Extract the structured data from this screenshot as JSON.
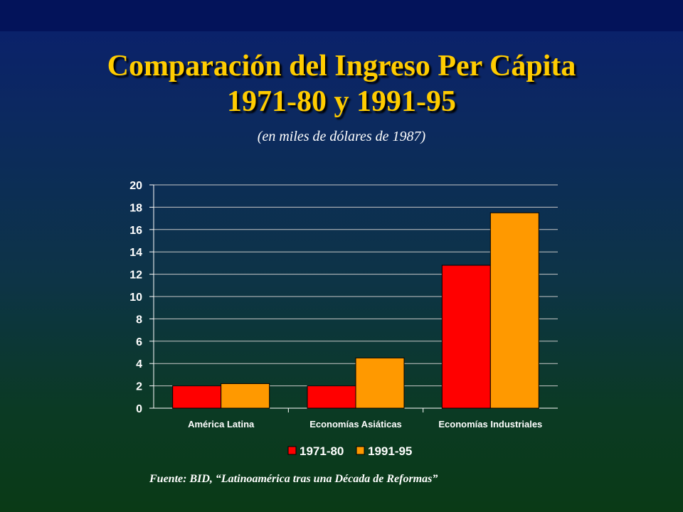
{
  "slide": {
    "title_line1": "Comparación del Ingreso Per Cápita",
    "title_line2": "1971-80 y 1991-95",
    "subtitle": "(en miles de dólares de 1987)",
    "source": "Fuente: BID, “Latinoamérica tras una Década de Reformas”"
  },
  "chart_data": {
    "type": "bar",
    "title": "",
    "xlabel": "",
    "ylabel": "",
    "categories": [
      "América Latina",
      "Economías Asiáticas",
      "Economías Industriales"
    ],
    "series": [
      {
        "name": "1971-80",
        "values": [
          2.0,
          2.0,
          12.8
        ],
        "color": "#ff0000"
      },
      {
        "name": "1991-95",
        "values": [
          2.2,
          4.5,
          17.5
        ],
        "color": "#ff9900"
      }
    ],
    "ylim": [
      0,
      20
    ],
    "yticks": [
      "0",
      "2",
      "4",
      "6",
      "8",
      "10",
      "12",
      "14",
      "16",
      "18",
      "20"
    ],
    "grid": true,
    "legend_position": "bottom"
  }
}
